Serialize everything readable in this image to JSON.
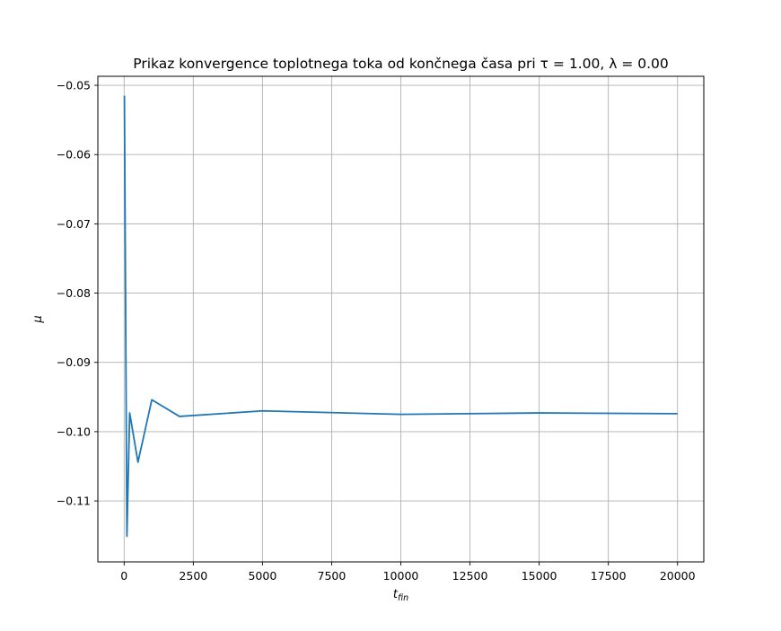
{
  "chart_data": {
    "type": "line",
    "title": "Prikaz konvergence toplotnega toka od končnega časa pri τ = 1.00, λ = 0.00",
    "xlabel": "t_fin",
    "ylabel": "μ",
    "xlim": [
      -950,
      20950
    ],
    "ylim": [
      -0.1188,
      -0.0487
    ],
    "xticks": [
      0,
      2500,
      5000,
      7500,
      10000,
      12500,
      15000,
      17500,
      20000
    ],
    "xtick_labels": [
      "0",
      "2500",
      "5000",
      "7500",
      "10000",
      "12500",
      "15000",
      "17500",
      "20000"
    ],
    "yticks": [
      -0.05,
      -0.06,
      -0.07,
      -0.08,
      -0.09,
      -0.1,
      -0.11
    ],
    "ytick_labels": [
      "−0.05",
      "−0.06",
      "−0.07",
      "−0.08",
      "−0.09",
      "−0.10",
      "−0.11"
    ],
    "grid": true,
    "series": [
      {
        "color": "#1f77b4",
        "x": [
          10,
          100,
          200,
          500,
          1000,
          2000,
          5000,
          10000,
          15000,
          20000
        ],
        "y": [
          -0.0515,
          -0.1151,
          -0.0973,
          -0.1044,
          -0.0954,
          -0.0978,
          -0.097,
          -0.0975,
          -0.0973,
          -0.0974
        ]
      }
    ]
  }
}
